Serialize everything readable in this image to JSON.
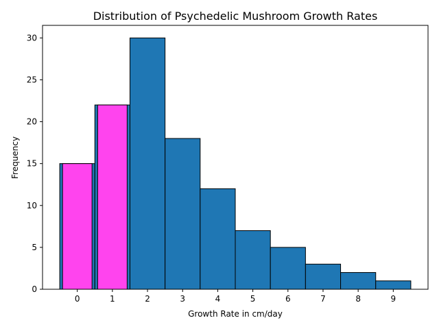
{
  "chart_data": {
    "type": "bar",
    "title": "Distribution of Psychedelic Mushroom Growth Rates",
    "xlabel": "Growth Rate in cm/day",
    "ylabel": "Frequency",
    "categories": [
      "0",
      "1",
      "2",
      "3",
      "4",
      "5",
      "6",
      "7",
      "8",
      "9"
    ],
    "x": [
      0,
      1,
      2,
      3,
      4,
      5,
      6,
      7,
      8,
      9
    ],
    "values": [
      15,
      22,
      30,
      18,
      12,
      7,
      5,
      3,
      2,
      1
    ],
    "highlight_values": [
      15,
      22
    ],
    "highlight_x": [
      0,
      1
    ],
    "x_ticks": [
      0,
      1,
      2,
      3,
      4,
      5,
      6,
      7,
      8,
      9
    ],
    "y_ticks": [
      0,
      5,
      10,
      15,
      20,
      25,
      30
    ],
    "xlim": [
      -0.99,
      9.99
    ],
    "ylim": [
      0,
      31.5
    ],
    "bar_color": "#1f77b4",
    "highlight_color": "#ff44ee",
    "edge_color": "#000000",
    "grid": false,
    "legend": "none"
  }
}
